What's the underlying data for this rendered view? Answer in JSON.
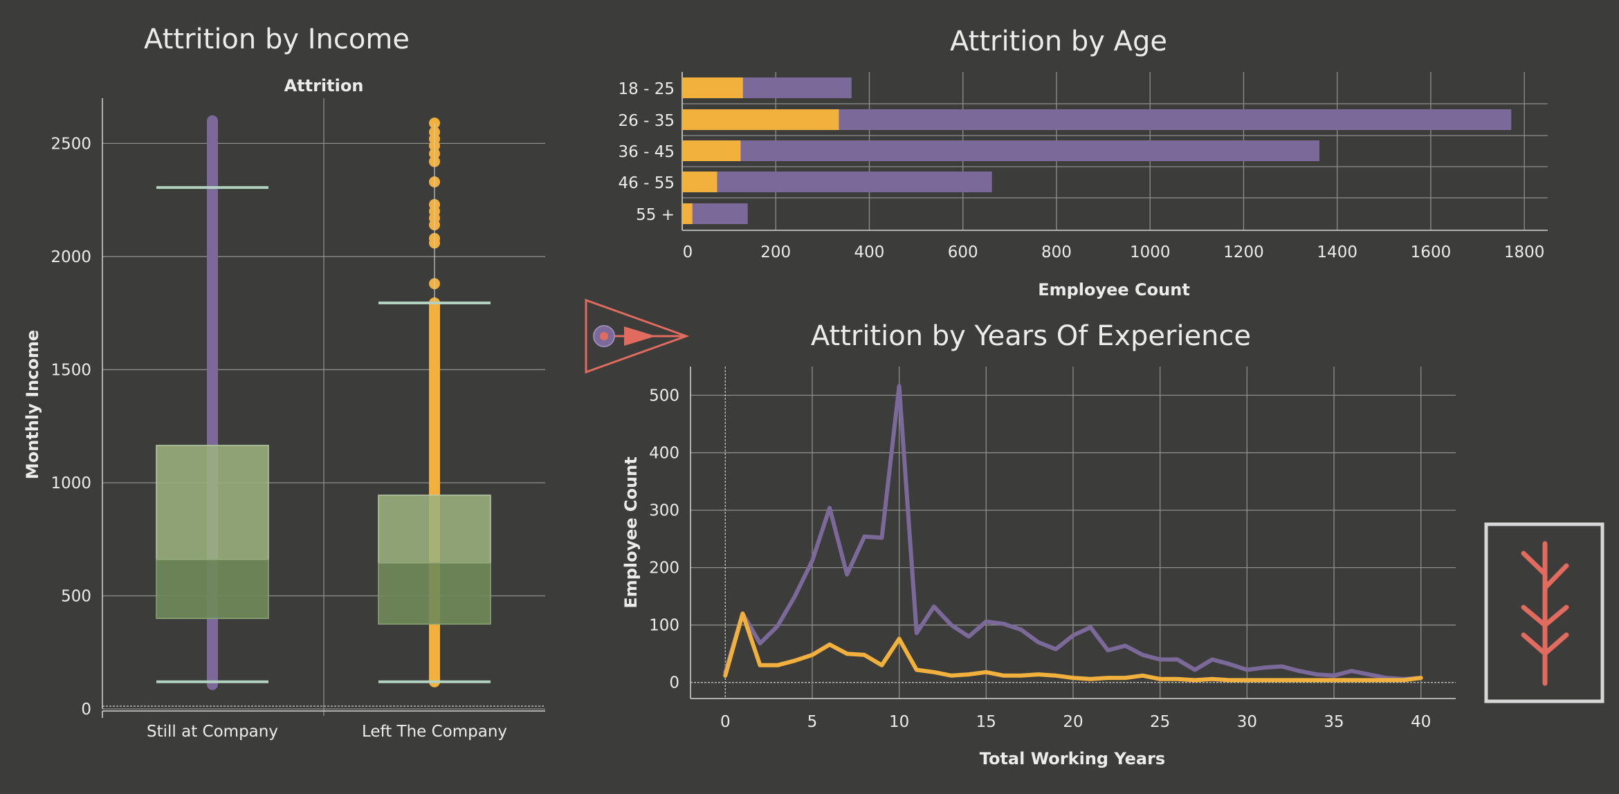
{
  "colors": {
    "background": "#3c3d3a",
    "still": "#7b6a99",
    "left": "#f2b13d",
    "box_upper": "#9bb07e",
    "box_lower": "#6f8a59",
    "whisker": "#b3d1c0",
    "icon": "#e06b5e",
    "icon_frame": "#d8d8d8"
  },
  "icons": {
    "nav": "triangle-arrow-icon",
    "logo": "branch-tree-icon"
  },
  "chart_data": [
    {
      "type": "box",
      "title": "Attrition by Income",
      "header": "Attrition",
      "ylabel": "Monthly Income",
      "ylim": [
        0,
        2700
      ],
      "yticks": [
        0,
        500,
        1000,
        1500,
        2000,
        2500
      ],
      "categories": [
        "Still at Company",
        "Left The Company"
      ],
      "boxes": [
        {
          "name": "Still at Company",
          "whisker_low": 120,
          "q1": 400,
          "median": 660,
          "q3": 1165,
          "whisker_high": 2305,
          "points_from": 120,
          "points_to": 2600
        },
        {
          "name": "Left The Company",
          "whisker_low": 120,
          "q1": 375,
          "median": 645,
          "q3": 945,
          "whisker_high": 1795,
          "outliers": [
            1880,
            2060,
            2080,
            2140,
            2170,
            2200,
            2230,
            2330,
            2420,
            2455,
            2490,
            2520,
            2550,
            2590
          ]
        }
      ]
    },
    {
      "type": "bar",
      "stacked": true,
      "orientation": "horizontal",
      "title": "Attrition by Age",
      "xlabel": "Employee Count",
      "xlim": [
        0,
        1850
      ],
      "xticks": [
        0,
        200,
        400,
        600,
        800,
        1000,
        1200,
        1400,
        1600,
        1800
      ],
      "categories": [
        "18 - 25",
        "26 - 35",
        "36 - 45",
        "46 - 55",
        "55 +"
      ],
      "series": [
        {
          "values": [
            130,
            335,
            125,
            75,
            22
          ]
        },
        {
          "values": [
            232,
            1437,
            1237,
            587,
            118
          ]
        }
      ],
      "totals": [
        362,
        1772,
        1362,
        662,
        140
      ]
    },
    {
      "type": "line",
      "title": "Attrition by Years Of Experience",
      "xlabel": "Total Working Years",
      "ylabel": "Employee Count",
      "xlim": [
        -2,
        42
      ],
      "ylim": [
        -28,
        550
      ],
      "xticks": [
        0,
        5,
        10,
        15,
        20,
        25,
        30,
        35,
        40
      ],
      "yticks": [
        0,
        100,
        200,
        300,
        400,
        500
      ],
      "x": [
        0,
        1,
        2,
        3,
        4,
        5,
        6,
        7,
        8,
        9,
        10,
        11,
        12,
        13,
        14,
        15,
        16,
        17,
        18,
        19,
        20,
        21,
        22,
        23,
        24,
        25,
        26,
        27,
        28,
        29,
        30,
        31,
        32,
        33,
        34,
        35,
        36,
        37,
        38,
        39,
        40
      ],
      "series": [
        {
          "values": [
            18,
            120,
            68,
            98,
            150,
            212,
            304,
            188,
            254,
            252,
            516,
            86,
            132,
            100,
            80,
            106,
            102,
            92,
            70,
            58,
            82,
            96,
            56,
            64,
            48,
            40,
            40,
            22,
            40,
            32,
            22,
            26,
            28,
            20,
            14,
            12,
            20,
            14,
            8,
            6,
            8
          ]
        },
        {
          "values": [
            12,
            120,
            30,
            30,
            38,
            48,
            66,
            50,
            48,
            30,
            76,
            22,
            18,
            12,
            14,
            18,
            12,
            12,
            14,
            12,
            8,
            6,
            8,
            8,
            12,
            6,
            6,
            4,
            6,
            4,
            4,
            4,
            4,
            4,
            4,
            4,
            4,
            4,
            4,
            4,
            8
          ]
        }
      ]
    }
  ]
}
